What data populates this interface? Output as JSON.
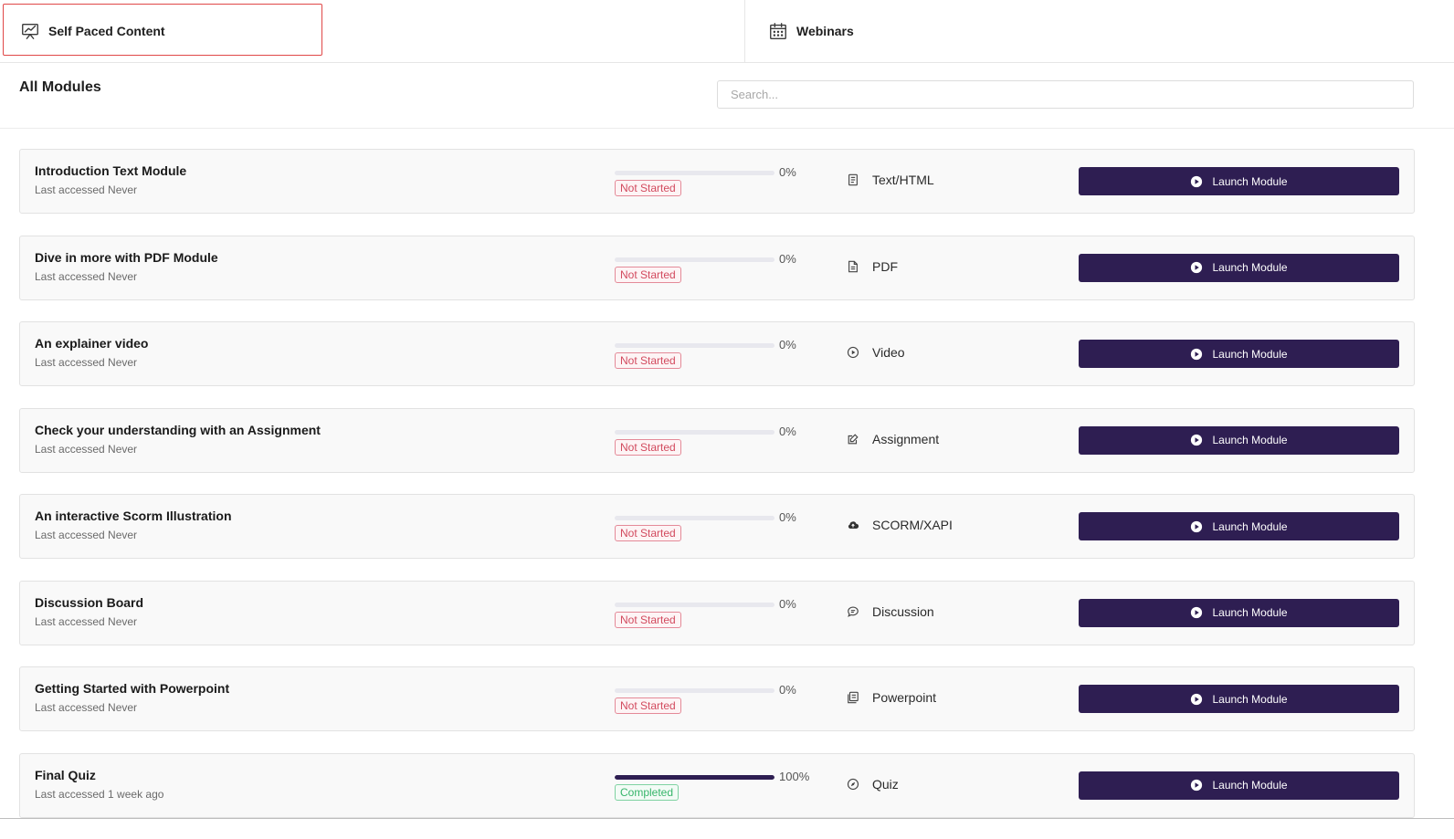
{
  "tabs": [
    {
      "label": "Self Paced Content",
      "icon": "presentation-chart-icon",
      "selected": true
    },
    {
      "label": "Webinars",
      "icon": "calendar-icon",
      "selected": false
    }
  ],
  "header": {
    "title": "All Modules",
    "search_placeholder": "Search..."
  },
  "colors": {
    "brand": "#2e1e52",
    "not_started": "#d24a5e",
    "completed": "#36b56a",
    "tab_highlight": "#e04848"
  },
  "modules": [
    {
      "name": "Introduction Text Module",
      "accessed": "Last accessed Never",
      "progress": 0,
      "progress_label": "0%",
      "status": "Not Started",
      "type": "Text/HTML",
      "type_icon": "document-text-icon",
      "launch_label": "Launch Module"
    },
    {
      "name": "Dive in more with PDF Module",
      "accessed": "Last accessed Never",
      "progress": 0,
      "progress_label": "0%",
      "status": "Not Started",
      "type": "PDF",
      "type_icon": "file-icon",
      "launch_label": "Launch Module"
    },
    {
      "name": "An explainer video",
      "accessed": "Last accessed Never",
      "progress": 0,
      "progress_label": "0%",
      "status": "Not Started",
      "type": "Video",
      "type_icon": "play-circle-icon",
      "launch_label": "Launch Module"
    },
    {
      "name": "Check your understanding with an Assignment",
      "accessed": "Last accessed Never",
      "progress": 0,
      "progress_label": "0%",
      "status": "Not Started",
      "type": "Assignment",
      "type_icon": "edit-icon",
      "launch_label": "Launch Module"
    },
    {
      "name": "An interactive Scorm Illustration",
      "accessed": "Last accessed Never",
      "progress": 0,
      "progress_label": "0%",
      "status": "Not Started",
      "type": "SCORM/XAPI",
      "type_icon": "cloud-upload-icon",
      "launch_label": "Launch Module"
    },
    {
      "name": "Discussion Board",
      "accessed": "Last accessed Never",
      "progress": 0,
      "progress_label": "0%",
      "status": "Not Started",
      "type": "Discussion",
      "type_icon": "chat-bubble-icon",
      "launch_label": "Launch Module"
    },
    {
      "name": "Getting Started with Powerpoint",
      "accessed": "Last accessed Never",
      "progress": 0,
      "progress_label": "0%",
      "status": "Not Started",
      "type": "Powerpoint",
      "type_icon": "slides-icon",
      "launch_label": "Launch Module"
    },
    {
      "name": "Final Quiz",
      "accessed": "Last accessed 1 week ago",
      "progress": 1,
      "progress_label": "100%",
      "status": "Completed",
      "type": "Quiz",
      "type_icon": "compass-icon",
      "launch_label": "Launch Module"
    }
  ]
}
